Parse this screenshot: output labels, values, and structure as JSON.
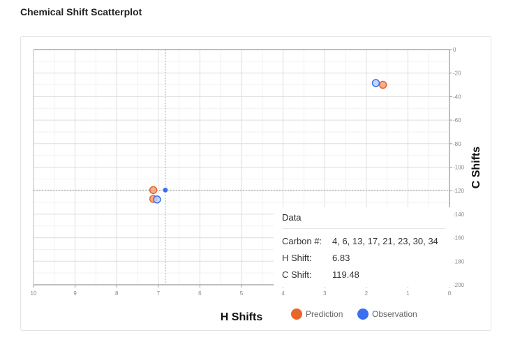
{
  "page": {
    "title": "Chemical Shift Scatterplot"
  },
  "chart_data": {
    "type": "scatter",
    "xlabel": "H Shifts",
    "ylabel": "C Shifts",
    "xlim": [
      10,
      0
    ],
    "ylim": [
      0,
      200
    ],
    "x_reversed": true,
    "y_reversed": true,
    "x_ticks": [
      "10",
      "9",
      "8",
      "7",
      "6",
      "5",
      "4",
      "3",
      "2",
      "1",
      "0"
    ],
    "y_ticks": [
      "0",
      "20",
      "40",
      "60",
      "80",
      "100",
      "120",
      "140",
      "160",
      "180",
      "200"
    ],
    "grid": true,
    "legend_position": "bottom",
    "series": [
      {
        "name": "Prediction",
        "color": "#e8652b",
        "points": [
          {
            "x": 7.12,
            "y": 119.5
          },
          {
            "x": 7.12,
            "y": 127.0
          },
          {
            "x": 1.6,
            "y": 30.0
          }
        ]
      },
      {
        "name": "Observation",
        "color": "#3a6ff0",
        "points": [
          {
            "x": 7.03,
            "y": 127.5
          },
          {
            "x": 6.83,
            "y": 119.48
          },
          {
            "x": 1.77,
            "y": 28.5
          }
        ]
      }
    ],
    "crosshair": {
      "x": 6.83,
      "y": 119.48
    }
  },
  "tooltip": {
    "title": "Data",
    "rows": [
      {
        "label": "Carbon #:",
        "value": "4, 6, 13, 17, 21, 23, 30, 34"
      },
      {
        "label": "H Shift:",
        "value": "6.83"
      },
      {
        "label": "C Shift:",
        "value": "119.48"
      }
    ]
  }
}
